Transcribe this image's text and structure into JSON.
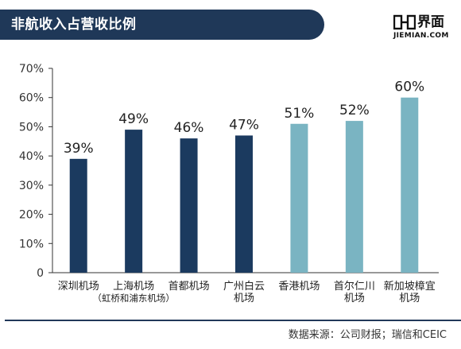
{
  "header": {
    "title": "非航收入占营收比例",
    "logo_cn": "界面",
    "logo_url": "JIEMIAN.COM"
  },
  "colors": {
    "header_bg": "#1f3858",
    "mainland_bar": "#1b3a5f",
    "other_bar": "#7ab4c2"
  },
  "chart_data": {
    "type": "bar",
    "title": "非航收入占营收比例",
    "categories": [
      [
        "深圳机场"
      ],
      [
        "上海机场",
        "（虹桥和浦东机场）"
      ],
      [
        "首都机场"
      ],
      [
        "广州白云",
        "机场"
      ],
      [
        "香港机场"
      ],
      [
        "首尔仁川",
        "机场"
      ],
      [
        "新加坡樟宜",
        "机场"
      ]
    ],
    "values": [
      39,
      49,
      46,
      47,
      51,
      52,
      60
    ],
    "value_labels": [
      "39%",
      "49%",
      "46%",
      "47%",
      "51%",
      "52%",
      "60%"
    ],
    "bar_colors": [
      "#1b3a5f",
      "#1b3a5f",
      "#1b3a5f",
      "#1b3a5f",
      "#7ab4c2",
      "#7ab4c2",
      "#7ab4c2"
    ],
    "yticks": [
      "0",
      "10%",
      "20%",
      "30%",
      "40%",
      "50%",
      "60%",
      "70%"
    ],
    "ylim": [
      0,
      70
    ],
    "grid": false,
    "xlabel": "",
    "ylabel": ""
  },
  "footer": {
    "source": "数据来源：公司财报；瑞信和CEIC"
  }
}
